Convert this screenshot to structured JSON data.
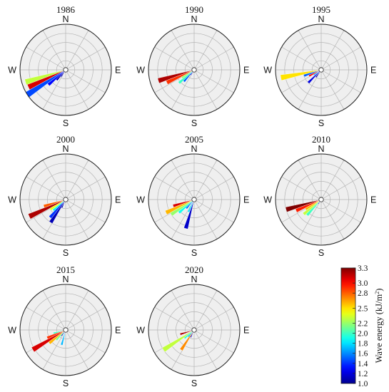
{
  "chart_data": {
    "type": "polar-bar",
    "direction_labels": {
      "N": "N",
      "E": "E",
      "S": "S",
      "W": "W"
    },
    "ring_max": 5,
    "colorbar": {
      "label": "Wave energy (kJ/m²)",
      "label_base": "Wave energy (kJ/m",
      "label_sup": "2",
      "label_end": ")",
      "min": 1.0,
      "max": 3.3,
      "ticks": [
        "3.3",
        "3.0",
        "2.8",
        "2.5",
        "2.2",
        "2.0",
        "1.8",
        "1.6",
        "1.4",
        "1.2",
        "1.0"
      ],
      "tick_values": [
        3.3,
        3.0,
        2.8,
        2.5,
        2.2,
        2.0,
        1.8,
        1.6,
        1.4,
        1.2,
        1.0
      ]
    },
    "panels": [
      {
        "year": "1986",
        "sectors": [
          {
            "dir": 253,
            "len": 4.6,
            "energy": 2.3
          },
          {
            "dir": 245,
            "len": 4.5,
            "energy": 3.1
          },
          {
            "dir": 237,
            "len": 5.0,
            "energy": 1.45
          },
          {
            "dir": 229,
            "len": 2.5,
            "energy": 1.3
          },
          {
            "dir": 221,
            "len": 1.5,
            "energy": 1.1
          },
          {
            "dir": 213,
            "len": 0.9,
            "energy": 1.05
          }
        ]
      },
      {
        "year": "1990",
        "sectors": [
          {
            "dir": 253,
            "len": 4.1,
            "energy": 3.2
          },
          {
            "dir": 245,
            "len": 3.3,
            "energy": 2.9
          },
          {
            "dir": 237,
            "len": 1.6,
            "energy": 2.2
          },
          {
            "dir": 229,
            "len": 2.2,
            "energy": 2.0
          },
          {
            "dir": 221,
            "len": 1.7,
            "energy": 1.5
          },
          {
            "dir": 213,
            "len": 0.7,
            "energy": 1.1
          },
          {
            "dir": 205,
            "len": 0.4,
            "energy": 1.05
          }
        ]
      },
      {
        "year": "1995",
        "sectors": [
          {
            "dir": 259,
            "len": 4.5,
            "energy": 2.5
          },
          {
            "dir": 251,
            "len": 2.0,
            "energy": 1.5
          },
          {
            "dir": 243,
            "len": 1.5,
            "energy": 3.0
          },
          {
            "dir": 235,
            "len": 1.0,
            "energy": 1.7
          },
          {
            "dir": 225,
            "len": 2.0,
            "energy": 1.2
          },
          {
            "dir": 215,
            "len": 1.0,
            "energy": 1.05
          }
        ]
      },
      {
        "year": "2000",
        "sectors": [
          {
            "dir": 253,
            "len": 2.5,
            "energy": 2.8
          },
          {
            "dir": 245,
            "len": 4.4,
            "energy": 3.2
          },
          {
            "dir": 237,
            "len": 2.0,
            "energy": 2.4
          },
          {
            "dir": 229,
            "len": 1.8,
            "energy": 1.9
          },
          {
            "dir": 221,
            "len": 2.6,
            "energy": 1.4
          },
          {
            "dir": 213,
            "len": 3.0,
            "energy": 1.1
          },
          {
            "dir": 205,
            "len": 1.0,
            "energy": 1.05
          }
        ]
      },
      {
        "year": "2005",
        "sectors": [
          {
            "dir": 253,
            "len": 2.4,
            "energy": 3.1
          },
          {
            "dir": 245,
            "len": 3.4,
            "energy": 2.6
          },
          {
            "dir": 237,
            "len": 3.0,
            "energy": 2.2
          },
          {
            "dir": 229,
            "len": 2.2,
            "energy": 1.9
          },
          {
            "dir": 221,
            "len": 1.3,
            "energy": 1.5
          },
          {
            "dir": 205,
            "len": 1.5,
            "energy": 1.8
          },
          {
            "dir": 196,
            "len": 3.3,
            "energy": 1.15
          }
        ]
      },
      {
        "year": "2010",
        "sectors": [
          {
            "dir": 254,
            "len": 4.0,
            "energy": 3.3
          },
          {
            "dir": 246,
            "len": 3.0,
            "energy": 2.95
          },
          {
            "dir": 238,
            "len": 2.0,
            "energy": 2.6
          },
          {
            "dir": 230,
            "len": 2.5,
            "energy": 2.3
          },
          {
            "dir": 222,
            "len": 2.3,
            "energy": 2.0
          },
          {
            "dir": 214,
            "len": 0.6,
            "energy": 1.15
          }
        ]
      },
      {
        "year": "2015",
        "sectors": [
          {
            "dir": 255,
            "len": 1.4,
            "energy": 2.0
          },
          {
            "dir": 247,
            "len": 2.2,
            "energy": 2.9
          },
          {
            "dir": 239,
            "len": 4.2,
            "energy": 3.1
          },
          {
            "dir": 231,
            "len": 2.3,
            "energy": 2.6
          },
          {
            "dir": 223,
            "len": 1.5,
            "energy": 2.1
          },
          {
            "dir": 215,
            "len": 0.8,
            "energy": 1.1
          },
          {
            "dir": 195,
            "len": 1.7,
            "energy": 1.7
          }
        ]
      },
      {
        "year": "2020",
        "sectors": [
          {
            "dir": 253,
            "len": 1.6,
            "energy": 3.2
          },
          {
            "dir": 237,
            "len": 4.0,
            "energy": 2.3
          },
          {
            "dir": 229,
            "len": 1.4,
            "energy": 1.95
          },
          {
            "dir": 221,
            "len": 1.0,
            "energy": 1.7
          },
          {
            "dir": 213,
            "len": 2.6,
            "energy": 2.7
          },
          {
            "dir": 205,
            "len": 0.9,
            "energy": 1.15
          }
        ]
      }
    ]
  }
}
